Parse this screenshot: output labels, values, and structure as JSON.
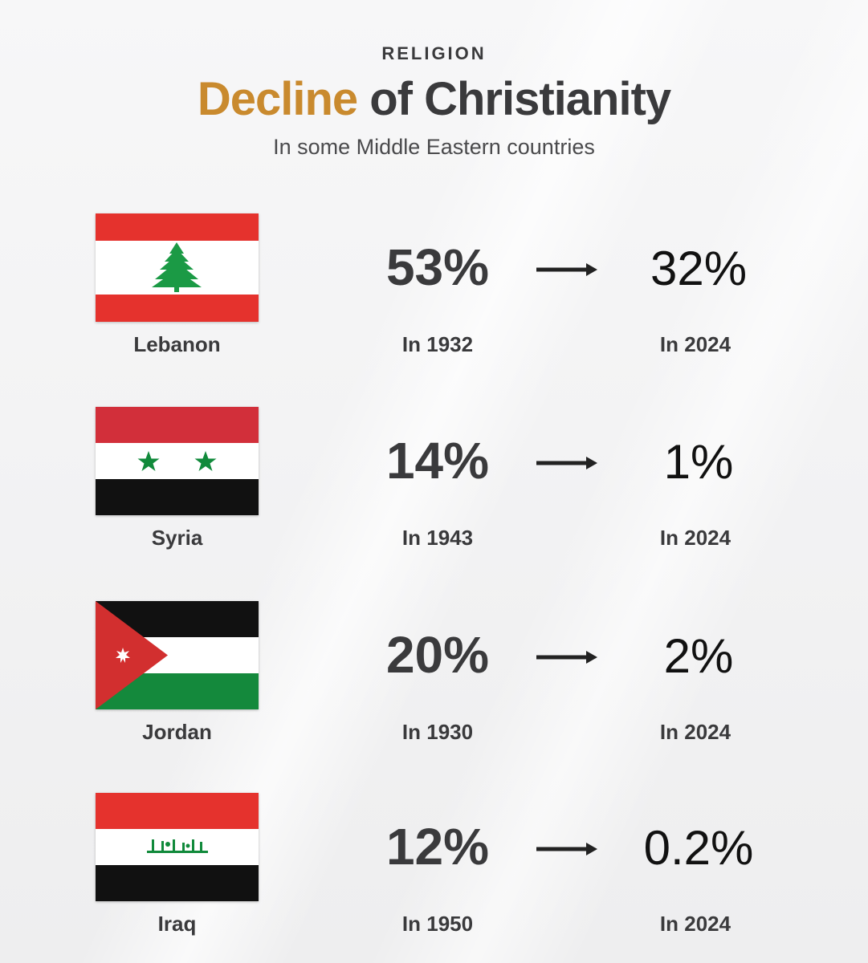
{
  "header": {
    "kicker": "RELIGION",
    "title_accent": "Decline",
    "title_rest": " of Christianity",
    "subtitle": "In some Middle Eastern countries"
  },
  "rows": [
    {
      "country": "Lebanon",
      "from_value": "53%",
      "from_year": "In 1932",
      "to_value": "32%",
      "to_year": "In 2024",
      "flag": "lebanon-flag"
    },
    {
      "country": "Syria",
      "from_value": "14%",
      "from_year": "In 1943",
      "to_value": "1%",
      "to_year": "In 2024",
      "flag": "syria-flag"
    },
    {
      "country": "Jordan",
      "from_value": "20%",
      "from_year": "In 1930",
      "to_value": "2%",
      "to_year": "In 2024",
      "flag": "jordan-flag"
    },
    {
      "country": "Iraq",
      "from_value": "12%",
      "from_year": "In 1950",
      "to_value": "0.2%",
      "to_year": "In 2024",
      "flag": "iraq-flag"
    }
  ],
  "colors": {
    "accent": "#c98a2e",
    "text": "#3a3a3c",
    "red": "#d22f2f",
    "green": "#118a3b",
    "black": "#111111"
  }
}
